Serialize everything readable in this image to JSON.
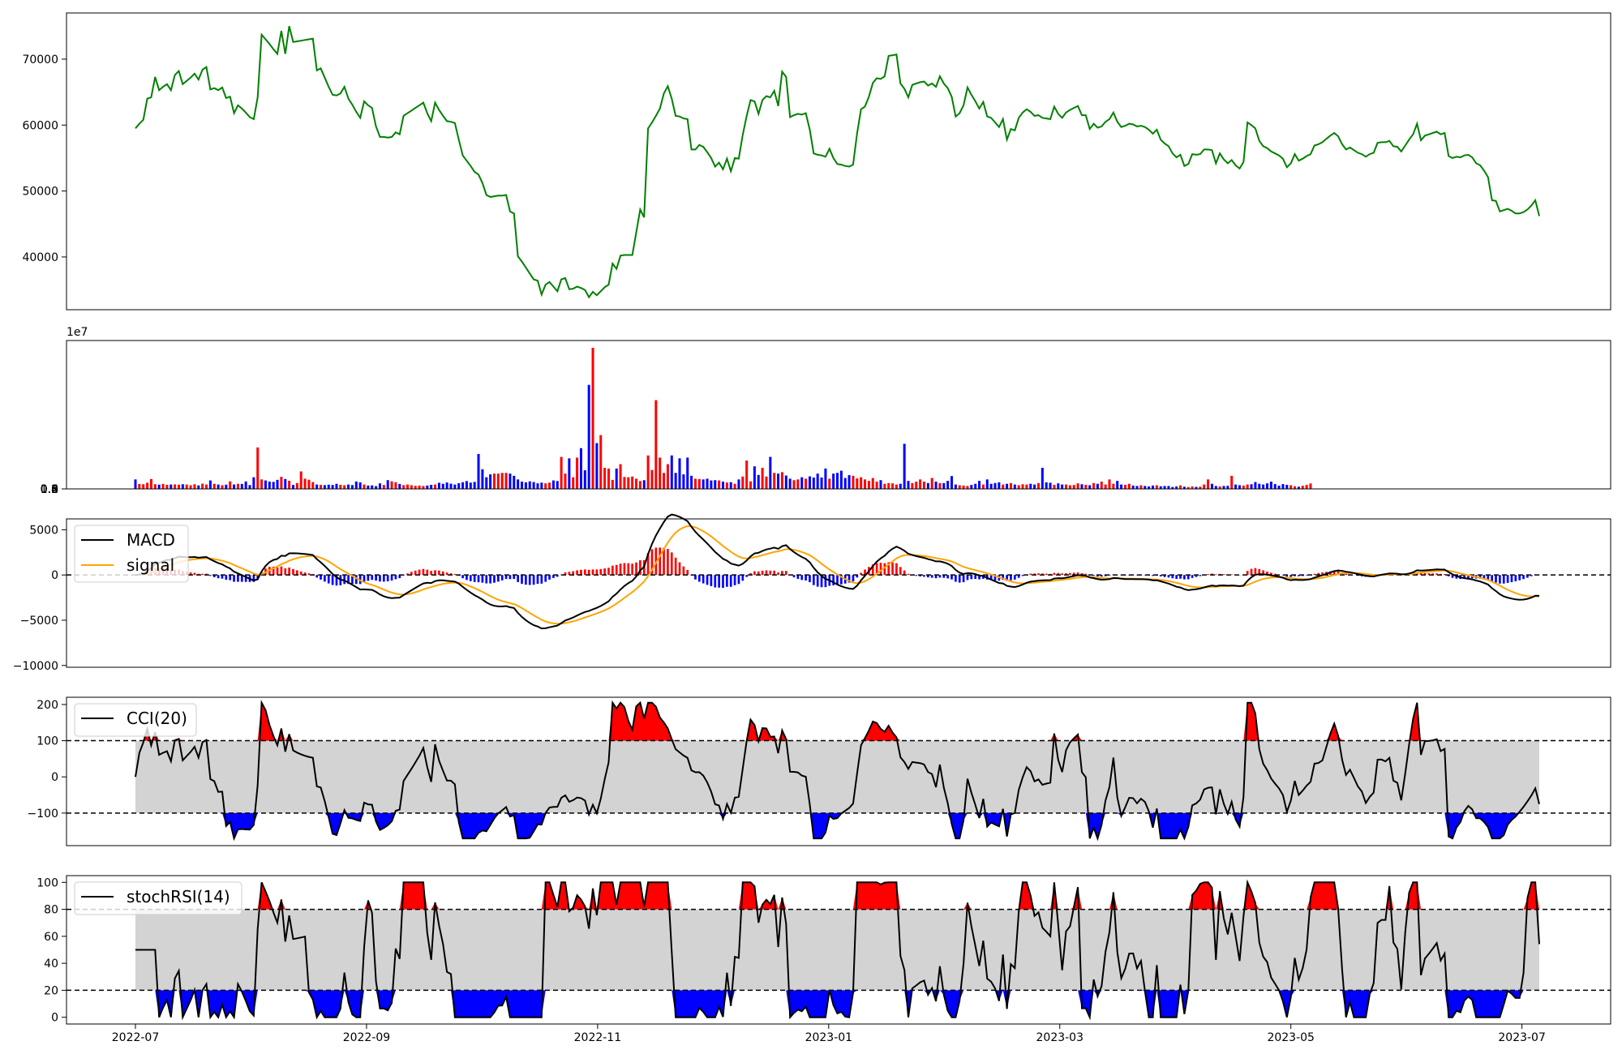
{
  "chart_data": [
    {
      "type": "line",
      "panel": "price",
      "series": [
        {
          "color": "#008000",
          "values": [
            59500,
            60200,
            60800,
            64000,
            64200,
            67300,
            65300,
            65800,
            66200,
            65300,
            67600,
            68200,
            66200,
            66700,
            67200,
            67800,
            66900,
            68400,
            68800,
            65400,
            65600,
            65300,
            65700,
            64100,
            64300,
            61800,
            63000,
            62500,
            61900,
            61200,
            60900,
            64200,
            73700,
            73000,
            72300,
            71500,
            70800,
            74300,
            70800,
            75000,
            72600,
            72700,
            72800,
            72900,
            73000,
            73100,
            68300,
            68600,
            67200,
            65800,
            64600,
            64500,
            64800,
            65800,
            64000,
            63100,
            62000,
            61100,
            63600,
            63000,
            62600,
            59800,
            58200,
            58200,
            58100,
            58200,
            58900,
            58600,
            61400,
            61800,
            62200,
            62600,
            63000,
            63400,
            61800,
            60600,
            63400,
            62300,
            61400,
            60600,
            60500,
            60300,
            57800,
            55400,
            54600,
            53800,
            52900,
            52500,
            51200,
            49400,
            49100,
            49200,
            49300,
            49300,
            49400,
            46900,
            46600,
            40100,
            39300,
            38400,
            37500,
            36600,
            36400,
            34300,
            35800,
            36200,
            35500,
            34800,
            36600,
            36800,
            35100,
            35200,
            35500,
            35300,
            35000,
            33900,
            34700,
            34200,
            34800,
            35400,
            35800,
            39000,
            38200,
            40200,
            40300,
            40300,
            40300,
            43700,
            47200,
            46000,
            59500,
            60400,
            61400,
            62500,
            64800,
            65900,
            64000,
            61400,
            61300,
            61000,
            60900,
            56300,
            56300,
            57000,
            56700,
            55900,
            55000,
            53700,
            54300,
            53300,
            54900,
            53000,
            55000,
            54900,
            58500,
            61400,
            63800,
            63600,
            61700,
            63800,
            64400,
            64200,
            65200,
            62900,
            68100,
            67300,
            61200,
            61500,
            61700,
            61600,
            61800,
            59300,
            55700,
            55500,
            55400,
            55200,
            56400,
            55000,
            54100,
            54000,
            53800,
            53700,
            54000,
            58700,
            62400,
            62800,
            64300,
            66400,
            67100,
            67000,
            67400,
            70500,
            70600,
            70700,
            66300,
            65500,
            64200,
            66100,
            66300,
            66500,
            66600,
            66000,
            66300,
            65800,
            67400,
            66300,
            65600,
            64300,
            61300,
            61800,
            63000,
            65700,
            64600,
            63600,
            62500,
            63500,
            61300,
            61100,
            60400,
            59700,
            60900,
            57800,
            59400,
            59200,
            61100,
            61900,
            62400,
            62000,
            61400,
            61500,
            61100,
            61000,
            60900,
            62800,
            61700,
            61100,
            61900,
            62300,
            62600,
            62900,
            61500,
            61500,
            59400,
            60200,
            59600,
            59800,
            60500,
            60900,
            61900,
            60500,
            59700,
            59900,
            60200,
            60100,
            59800,
            59900,
            59700,
            59300,
            58700,
            59300,
            57800,
            57200,
            56800,
            55700,
            55100,
            55500,
            53800,
            54100,
            55600,
            55500,
            55600,
            56300,
            56300,
            56200,
            54200,
            55700,
            54800,
            54200,
            54700,
            53900,
            53400,
            54400,
            60400,
            60000,
            59500,
            57600,
            56800,
            56500,
            56000,
            55700,
            55400,
            54900,
            53600,
            54200,
            55600,
            54600,
            54900,
            55300,
            55600,
            56900,
            57100,
            57400,
            57900,
            58400,
            58800,
            58300,
            57100,
            56300,
            56600,
            56200,
            55800,
            55600,
            55200,
            55600,
            55800,
            57300,
            57400,
            57400,
            57600,
            56800,
            56700,
            56000,
            56900,
            57800,
            58600,
            60200,
            57700,
            58400,
            58600,
            58800,
            59000,
            58600,
            58800,
            55300,
            55000,
            55200,
            55100,
            55400,
            55500,
            55100,
            54200,
            53900,
            53100,
            52100,
            48600,
            48500,
            46900,
            47100,
            47300,
            47000,
            46600,
            46600,
            46800,
            47200,
            47800,
            48600,
            46200
          ]
        }
      ],
      "yticks": [
        "40000",
        "50000",
        "60000",
        "70000"
      ],
      "ylim": [
        32000,
        77000
      ]
    },
    {
      "type": "bar",
      "panel": "volume",
      "offset_label": "1e7",
      "yticks": [
        "0.0",
        "0.2",
        "0.4",
        "0.6",
        "0.8",
        "1.0"
      ],
      "ylim": [
        0,
        10200000
      ],
      "up_color": "#ff0000",
      "down_color": "#0000ff",
      "values": [
        650000,
        340000,
        320000,
        420000,
        680000,
        320000,
        290000,
        340000,
        280000,
        300000,
        310000,
        290000,
        320000,
        300000,
        250000,
        320000,
        240000,
        360000,
        300000,
        580000,
        350000,
        300000,
        250000,
        290000,
        520000,
        300000,
        350000,
        340000,
        510000,
        260000,
        800000,
        2850000,
        650000,
        580000,
        500000,
        480000,
        620000,
        830000,
        680000,
        560000,
        270000,
        400000,
        1200000,
        700000,
        630000,
        470000,
        300000,
        280000,
        260000,
        290000,
        270000,
        350000,
        280000,
        250000,
        300000,
        260000,
        510000,
        450000,
        300000,
        230000,
        240000,
        190000,
        380000,
        270000,
        600000,
        520000,
        460000,
        340000,
        260000,
        300000,
        250000,
        210000,
        230000,
        200000,
        230000,
        280000,
        300000,
        420000,
        350000,
        440000,
        360000,
        300000,
        390000,
        460000,
        540000,
        430000,
        480000,
        2400000,
        1350000,
        800000,
        1000000,
        1050000,
        1050000,
        1100000,
        1100000,
        1050000,
        900000,
        650000,
        500000,
        450000,
        520000,
        470000,
        380000,
        430000,
        380000,
        430000,
        580000,
        540000,
        2200000,
        1050000,
        2100000,
        800000,
        2150000,
        2800000,
        1280000,
        7150000,
        9700000,
        3150000,
        3700000,
        1450000,
        1400000,
        620000,
        1400000,
        1700000,
        820000,
        800000,
        850000,
        700000,
        540000,
        600000,
        2300000,
        1300000,
        6100000,
        2150000,
        1100000,
        1700000,
        2300000,
        1100000,
        2100000,
        1000000,
        2150000,
        900000,
        700000,
        680000,
        650000,
        700000,
        580000,
        600000,
        580000,
        500000,
        440000,
        460000,
        350000,
        650000,
        850000,
        1950000,
        520000,
        1550000,
        960000,
        1450000,
        850000,
        2200000,
        1100000,
        1050000,
        1150000,
        920000,
        700000,
        600000,
        650000,
        800000,
        700000,
        860000,
        780000,
        1050000,
        780000,
        1400000,
        700000,
        1050000,
        1100000,
        1250000,
        750000,
        950000,
        900000,
        720000,
        800000,
        650000,
        550000,
        750000,
        500000,
        600000,
        350000,
        400000,
        380000,
        300000,
        350000,
        3100000,
        550000,
        400000,
        500000,
        650000,
        500000,
        400000,
        750000,
        500000,
        400000,
        400000,
        550000,
        880000,
        300000,
        250000,
        230000,
        200000,
        270000,
        350000,
        550000,
        300000,
        650000,
        350000,
        400000,
        450000,
        300000,
        350000,
        400000,
        300000,
        250000,
        320000,
        300000,
        350000,
        300000,
        400000,
        1450000,
        450000,
        420000,
        280000,
        380000,
        300000,
        300000,
        250000,
        270000,
        380000,
        320000,
        280000,
        250000,
        400000,
        350000,
        500000,
        300000,
        650000,
        350000,
        550000,
        300000,
        280000,
        350000,
        230000,
        200000,
        250000,
        200000,
        170000,
        230000,
        250000,
        180000,
        200000,
        200000,
        130000,
        170000,
        240000,
        150000,
        130000,
        170000,
        140000,
        150000,
        300000,
        650000,
        350000,
        200000,
        170000,
        200000,
        210000,
        900000,
        300000,
        250000,
        230000,
        300000,
        320000,
        470000,
        350000,
        300000,
        380000,
        500000,
        330000,
        220000,
        330000,
        280000,
        250000,
        180000,
        150000,
        220000,
        270000,
        370000
      ]
    },
    {
      "type": "line",
      "panel": "macd",
      "yticks": [
        "−10000",
        "−5000",
        "0",
        "5000"
      ],
      "ylim": [
        -10200,
        6200
      ],
      "legend": [
        {
          "name": "MACD",
          "color": "#000000"
        },
        {
          "name": "signal",
          "color": "#ffa500"
        }
      ]
    },
    {
      "type": "line",
      "panel": "cci",
      "yticks": [
        "−100",
        "0",
        "100",
        "200"
      ],
      "ylim": [
        -190,
        220
      ],
      "bands": [
        -100,
        100
      ],
      "legend": [
        {
          "name": "CCI(20)",
          "color": "#000000"
        }
      ]
    },
    {
      "type": "line",
      "panel": "stochrsi",
      "yticks": [
        "0",
        "20",
        "40",
        "60",
        "80",
        "100"
      ],
      "ylim": [
        -5,
        105
      ],
      "bands": [
        20,
        80
      ],
      "legend": [
        {
          "name": "stochRSI(14)",
          "color": "#000000"
        }
      ],
      "xticks": [
        "2022-07",
        "2022-09",
        "2022-11",
        "2023-01",
        "2023-03",
        "2023-05",
        "2023-07"
      ]
    }
  ]
}
